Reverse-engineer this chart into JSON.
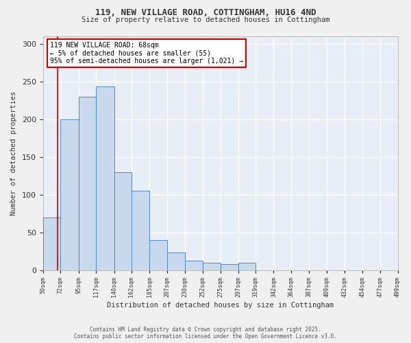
{
  "title": "119, NEW VILLAGE ROAD, COTTINGHAM, HU16 4ND",
  "subtitle": "Size of property relative to detached houses in Cottingham",
  "xlabel": "Distribution of detached houses by size in Cottingham",
  "ylabel": "Number of detached properties",
  "bin_edges": [
    50,
    72,
    95,
    117,
    140,
    162,
    185,
    207,
    230,
    252,
    275,
    297,
    319,
    342,
    364,
    387,
    409,
    432,
    454,
    477,
    499
  ],
  "bar_heights": [
    70,
    200,
    230,
    243,
    130,
    105,
    40,
    24,
    13,
    10,
    8,
    10,
    0,
    0,
    0,
    0,
    0,
    0,
    0,
    0
  ],
  "bar_color": "#c8d9ed",
  "bar_edge_color": "#5588bb",
  "property_line_x": 68,
  "property_line_color": "#cc0000",
  "annotation_title": "119 NEW VILLAGE ROAD: 68sqm",
  "annotation_line1": "← 5% of detached houses are smaller (55)",
  "annotation_line2": "95% of semi-detached houses are larger (1,021) →",
  "annotation_box_edgecolor": "#cc0000",
  "annotation_box_facecolor": "#ffffff",
  "ylim": [
    0,
    310
  ],
  "xlim": [
    50,
    499
  ],
  "footnote1": "Contains HM Land Registry data © Crown copyright and database right 2025.",
  "footnote2": "Contains public sector information licensed under the Open Government Licence v3.0.",
  "plot_bg_color": "#e8eef5",
  "fig_bg_color": "#f0f0f0",
  "grid_color": "#ffffff",
  "tick_labels": [
    "50sqm",
    "72sqm",
    "95sqm",
    "117sqm",
    "140sqm",
    "162sqm",
    "185sqm",
    "207sqm",
    "230sqm",
    "252sqm",
    "275sqm",
    "297sqm",
    "319sqm",
    "342sqm",
    "364sqm",
    "387sqm",
    "409sqm",
    "432sqm",
    "454sqm",
    "477sqm",
    "499sqm"
  ],
  "yticks": [
    0,
    50,
    100,
    150,
    200,
    250,
    300
  ]
}
